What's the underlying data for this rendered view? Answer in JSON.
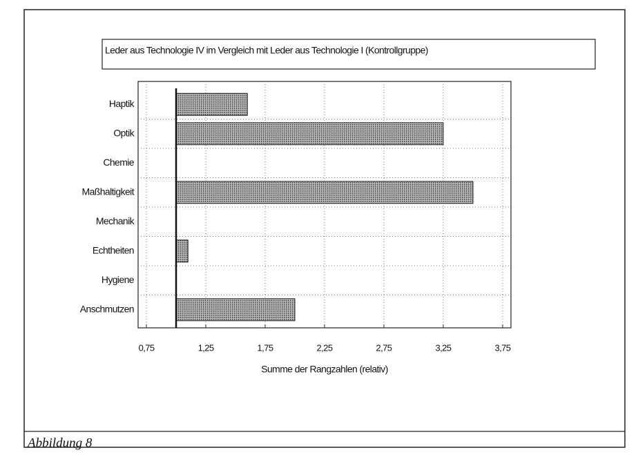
{
  "chart_data": {
    "type": "bar",
    "orientation": "horizontal",
    "title": "Leder aus Technologie IV im Vergleich mit Leder aus Technologie I (Kontrollgruppe)",
    "categories": [
      "Haptik",
      "Optik",
      "Chemie",
      "Maßhaltigkeit",
      "Mechanik",
      "Echtheiten",
      "Hygiene",
      "Anschmutzen"
    ],
    "values": [
      1.6,
      3.25,
      1,
      3.5,
      1,
      1.1,
      1,
      2
    ],
    "baseline": 1,
    "color": "#8a8a8a",
    "xlabel": "Summe der Rangzahlen (relativ)",
    "xlim": [
      0.68,
      3.82
    ],
    "xticks": [
      {
        "value": 0.75,
        "label": "0,75"
      },
      {
        "value": 1.25,
        "label": "1,25"
      },
      {
        "value": 1.75,
        "label": "1,75"
      },
      {
        "value": 2.25,
        "label": "2,25"
      },
      {
        "value": 2.75,
        "label": "2,75"
      },
      {
        "value": 3.25,
        "label": "3,25"
      },
      {
        "value": 3.75,
        "label": "3,75"
      }
    ],
    "grid": true,
    "caption": "Abbildung 8"
  }
}
